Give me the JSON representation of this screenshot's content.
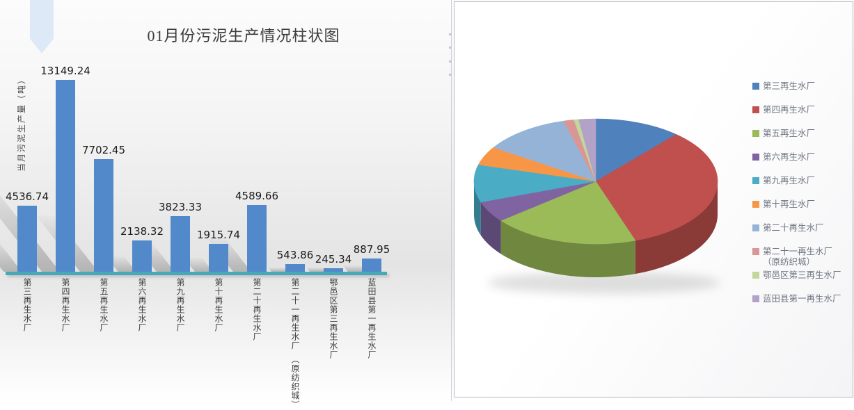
{
  "bar_chart": {
    "title": "01月份污泥生产情况柱状图",
    "y_axis_label": "当月污泥生产量（吨）",
    "bar_color": "#5289cb",
    "baseline_color": "#47a8b8"
  },
  "decor": {
    "arrow_color": "#dde9f6"
  },
  "pie_legend": [
    [
      "第三再生水厂"
    ],
    [
      "第四再生水厂"
    ],
    [
      "第五再生水厂"
    ],
    [
      "第六再生水厂"
    ],
    [
      "第九再生水厂"
    ],
    [
      "第十再生水厂"
    ],
    [
      "第二十再生水厂"
    ],
    [
      "第二十一再生水厂",
      "（原纺织城）"
    ],
    [
      "鄂邑区第三再生水厂"
    ],
    [
      "蓝田县第一再生水厂"
    ]
  ],
  "chart_data": [
    {
      "type": "bar",
      "title": "01月份污泥生产情况柱状图",
      "xlabel": "",
      "ylabel": "当月污泥生产量（吨）",
      "categories": [
        "第三再生水厂",
        "第四再生水厂",
        "第五再生水厂",
        "第六再生水厂",
        "第九再生水厂",
        "第十再生水厂",
        "第二十再生水厂",
        "第二十一再生水厂（原纺织城）",
        "鄂邑区第三再生水厂",
        "蓝田县第一再生水厂"
      ],
      "values": [
        4536.74,
        13149.24,
        7702.45,
        2138.32,
        3823.33,
        1915.74,
        4589.66,
        543.86,
        245.34,
        887.95
      ],
      "data_labels": [
        "4536.74",
        "13149.24",
        "7702.45",
        "2138.32",
        "3823.33",
        "1915.74",
        "4589.66",
        "543.86",
        "245.34",
        "887.95"
      ],
      "ylim": [
        0,
        13149.24
      ],
      "grid": false,
      "legend_position": "none",
      "bar_color": "#5289cb"
    },
    {
      "type": "pie",
      "labels": [
        "第三再生水厂",
        "第四再生水厂",
        "第五再生水厂",
        "第六再生水厂",
        "第九再生水厂",
        "第十再生水厂",
        "第二十再生水厂",
        "第二十一再生水厂（原纺织城）",
        "鄂邑区第三再生水厂",
        "蓝田县第一再生水厂"
      ],
      "values": [
        4536.74,
        13149.24,
        7702.45,
        2138.32,
        3823.33,
        1915.74,
        4589.66,
        543.86,
        245.34,
        887.95
      ],
      "colors": [
        "#4F81BD",
        "#C0504D",
        "#9BBB59",
        "#8064A2",
        "#4BACC6",
        "#F79646",
        "#95B3D7",
        "#D99694",
        "#C3D69B",
        "#B2A2C7"
      ],
      "legend_position": "right",
      "style": "3d-pie",
      "start_angle_deg": 0,
      "direction": "clockwise"
    }
  ]
}
